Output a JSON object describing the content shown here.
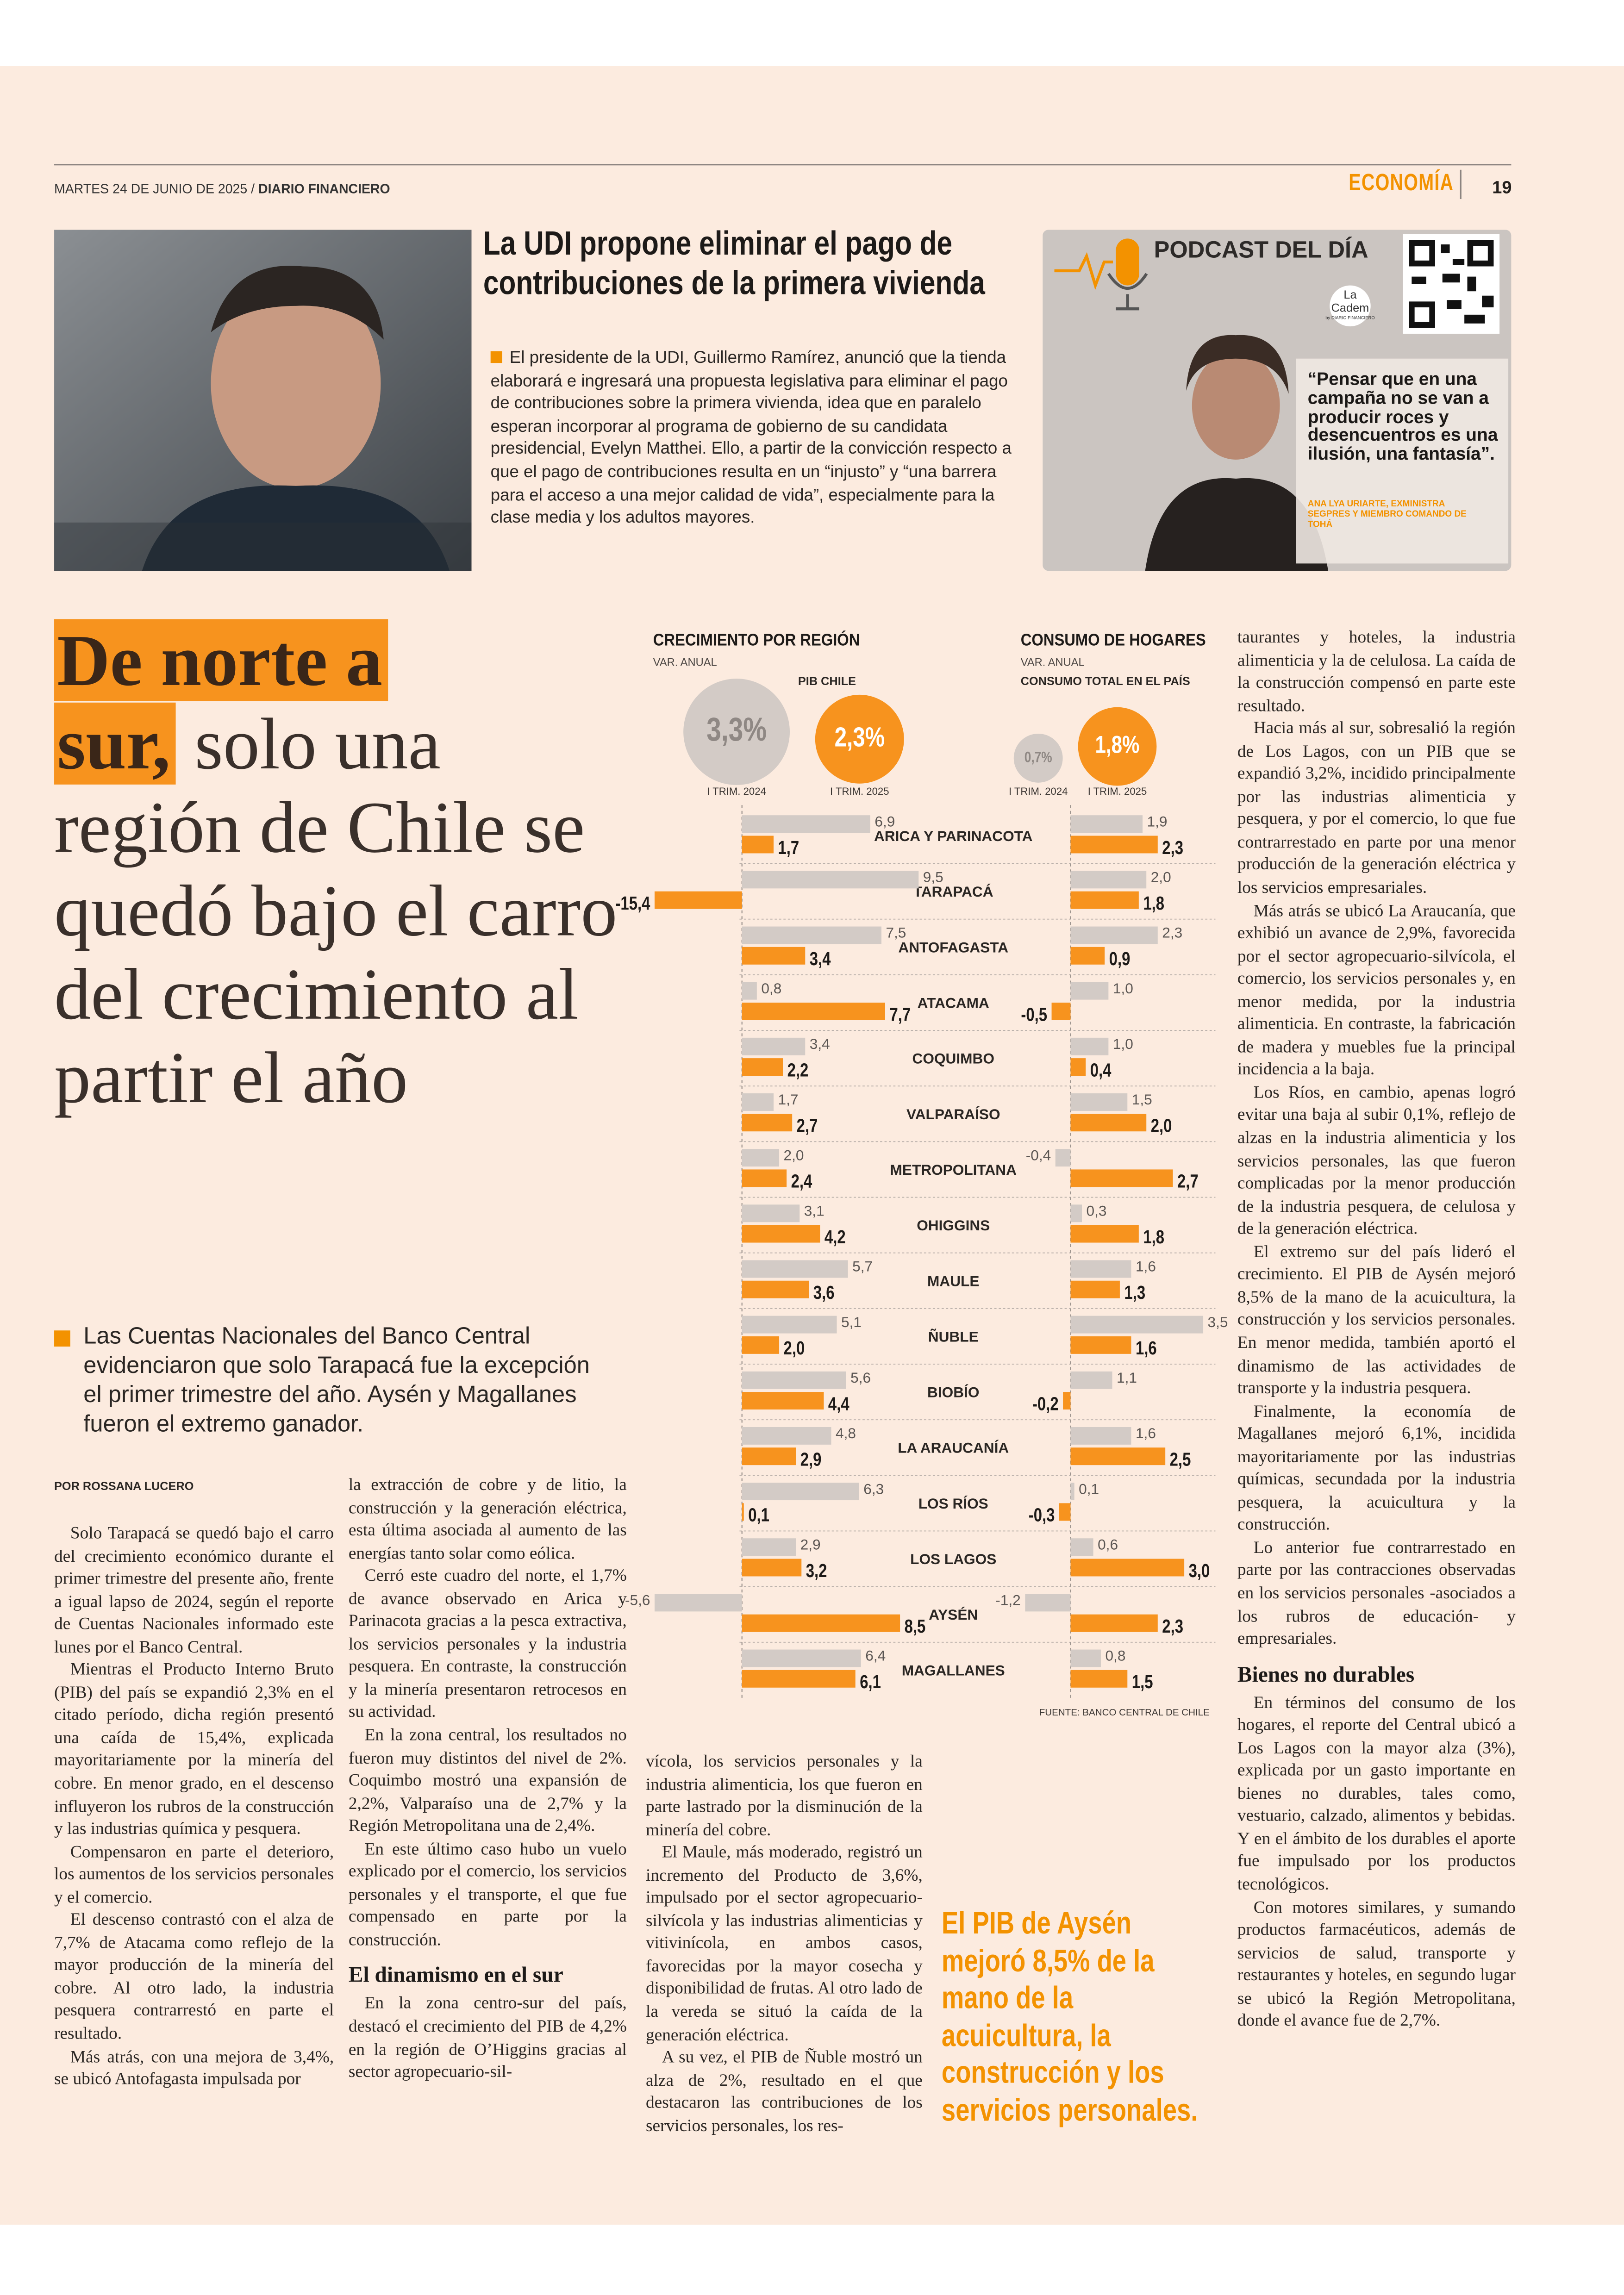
{
  "header": {
    "date": "MARTES 24 DE JUNIO DE 2025 /",
    "paper": "DIARIO FINANCIERO",
    "section": "ECONOMÍA",
    "page": "19"
  },
  "brief": {
    "title": "La UDI propone eliminar el pago de contribuciones de la primera vivienda",
    "body": "El presidente de la UDI, Guillermo Ramírez, anunció que la tienda elaborará e ingresará una propuesta legislativa para eliminar el pago de contribuciones sobre la primera vivienda, idea que en paralelo esperan incorporar al programa de gobierno de su candidata presidencial, Evelyn Matthei. Ello, a partir de la convicción respecto a que el pago de contribuciones resulta en un “injusto” y “una barrera para el acceso a una mejor calidad de vida”, especialmente para la clase media y los adultos mayores."
  },
  "podcast": {
    "title": "PODCAST DEL DÍA",
    "brand": [
      "La",
      "Cadem"
    ],
    "brand_by": "by DIARIO FINANCIERO",
    "quote": "“Pensar que en una campaña no se van a producir roces y desencuentros es una ilusión, una fantasía”.",
    "attribution": "ANA LYA URIARTE, EXMINISTRA SEGPRES Y MIEMBRO COMANDO DE TOHÁ"
  },
  "article": {
    "headline_highlight": [
      "De norte a",
      "sur,"
    ],
    "headline_rest": "solo una región de Chile se quedó bajo el carro del crecimiento al partir el año",
    "lead": "Las Cuentas Nacionales del Banco Central evidenciaron que solo Tarapacá fue la excepción el primer trimestre del año. Aysén y Magallanes fueron el extremo ganador.",
    "byline": "POR ROSSANA LUCERO",
    "columns": [
      [
        {
          "p": "Solo Tarapacá se quedó bajo el carro del crecimiento económico durante el primer trimestre del presente año, frente a igual lapso de 2024, según el reporte de Cuentas Nacionales informado este lunes por el Banco Central."
        },
        {
          "p": "Mientras el Producto Interno Bruto (PIB) del país se expandió 2,3% en el citado período, dicha región presentó una caída de 15,4%, explicada mayoritariamente por la minería del cobre. En menor grado, en el descenso influyeron los rubros de la construcción y las industrias química y pesquera."
        },
        {
          "p": "Compensaron en parte el deterioro, los aumentos de los servicios personales y el comercio."
        },
        {
          "p": "El descenso contrastó con el alza de 7,7% de Atacama como reflejo de la mayor producción de la minería del cobre. Al otro lado, la industria pesquera contrarrestó en parte el resultado."
        },
        {
          "p": "Más atrás, con una mejora de 3,4%, se ubicó Antofagasta impulsada por"
        }
      ],
      [
        {
          "p": "la extracción de cobre y de litio, la construcción y la generación eléctrica, esta última asociada al aumento de las energías tanto solar como eólica."
        },
        {
          "p": "Cerró este cuadro del norte, el 1,7% de avance observado en Arica y Parinacota gracias a la pesca extractiva, los servicios personales y la industria pesquera. En contraste, la construcción y la minería presentaron retrocesos en su actividad."
        },
        {
          "p": "En la zona central, los resultados no fueron muy distintos del nivel de 2%. Coquimbo mostró una expansión de 2,2%, Valparaíso una de 2,7% y la Región Metropolitana una de 2,4%."
        },
        {
          "p": "En este último caso hubo un vuelo explicado por el comercio, los servicios personales y el transporte, el que fue compensado en parte por la construcción."
        },
        {
          "h": "El dinamismo en el sur"
        },
        {
          "p": "En la zona centro-sur del país, destacó el crecimiento del PIB de 4,2% en la región de O’Higgins gracias al sector agropecuario-sil-"
        }
      ],
      [
        {
          "p": "vícola, los servicios personales y la industria alimenticia, los que fueron en parte lastrado por la disminución de la minería del cobre."
        },
        {
          "p": "El Maule, más moderado, registró un incremento del Producto de 3,6%, impulsado por el sector agropecuario-silvícola y las industrias alimenticias y vitivinícola, en ambos casos, favorecidas por la mayor cosecha y disponibilidad de frutas. Al otro lado de la vereda se situó la caída de la generación eléctrica."
        },
        {
          "p": "A su vez, el PIB de Ñuble mostró un alza de 2%, resultado en el que destacaron las contribuciones de los servicios personales, los res-"
        }
      ],
      [
        {
          "p": "taurantes y hoteles, la industria alimenticia y la de celulosa. La caída de la construcción compensó en parte este resultado."
        },
        {
          "p": "Hacia más al sur, sobresalió la región de Los Lagos, con un PIB que se expandió 3,2%, incidido principalmente por las industrias alimenticia y pesquera, y por el comercio, lo que fue contrarrestado en parte por una menor producción de la generación eléctrica y los servicios empresariales."
        },
        {
          "p": "Más atrás se ubicó La Araucanía, que exhibió un avance de 2,9%, favorecida por el sector agropecuario-silvícola, el comercio, los servicios personales y, en menor medida, por la industria alimenticia. En contraste, la fabricación de madera y muebles fue la principal incidencia a la baja."
        },
        {
          "p": "Los Ríos, en cambio, apenas logró evitar una baja al subir 0,1%, reflejo de alzas en la industria alimenticia y los servicios personales, las que fueron complicadas por la menor producción de la industria pesquera, de celulosa y de la generación eléctrica."
        },
        {
          "p": "El extremo sur del país lideró el crecimiento. El PIB de Aysén mejoró 8,5% de la mano de la acuicultura, la construcción y los servicios personales. En menor medida, también aportó el dinamismo de las actividades de transporte y la industria pesquera."
        },
        {
          "p": "Finalmente, la economía de Magallanes mejoró 6,1%, incidida mayoritariamente por las industrias químicas, secundada por la industria pesquera, la acuicultura y la construcción."
        },
        {
          "p": "Lo anterior fue contrarrestado en parte por las contracciones observadas en los servicios personales -asociados a los rubros de educación- y empresariales."
        },
        {
          "h": "Bienes no durables"
        },
        {
          "p": "En términos del consumo de los hogares, el reporte del Central ubicó a Los Lagos con la mayor alza (3%), explicada por un gasto importante en bienes no durables, tales como, vestuario, calzado, alimentos y bebidas. Y en el ámbito de los durables el aporte fue impulsado por los productos tecnológicos."
        },
        {
          "p": "Con motores similares, y sumando productos farmacéuticos, además de servicios de salud, transporte y restaurantes y hoteles, en segundo lugar se ubicó la Región Metropolitana, donde el avance fue de 2,7%."
        }
      ]
    ],
    "pull_quote": "El PIB de Aysén mejoró 8,5% de la mano de la acuicultura, la construcción y los servicios personales."
  },
  "charts": [
    {
      "type": "bar",
      "title": "CRECIMIENTO POR REGIÓN",
      "subtitle": "VAR. ANUAL",
      "categories": [
        "ARICA Y PARINACOTA",
        "TARAPACÁ",
        "ANTOFAGASTA",
        "ATACAMA",
        "COQUIMBO",
        "VALPARAÍSO",
        "METROPOLITANA",
        "OHIGGINS",
        "MAULE",
        "ÑUBLE",
        "BIOBÍO",
        "LA ARAUCANÍA",
        "LOS RÍOS",
        "LOS LAGOS",
        "AYSÉN",
        "MAGALLANES"
      ],
      "xlim": [
        -4.7,
        10.5
      ],
      "totals": {
        "label": "PIB CHILE",
        "values": [
          3.3,
          2.3
        ],
        "value_labels": [
          "3,3%",
          "2,3%"
        ]
      },
      "series": [
        {
          "name": "I TRIM. 2024",
          "color": "#d3cbc6",
          "values": [
            6.9,
            9.5,
            7.5,
            0.8,
            3.4,
            1.7,
            2.0,
            3.1,
            5.7,
            5.1,
            5.6,
            4.8,
            6.3,
            2.9,
            -5.6,
            6.4
          ],
          "value_labels": [
            "6,9",
            "9,5",
            "7,5",
            "0,8",
            "3,4",
            "1,7",
            "2,0",
            "3,1",
            "5,7",
            "5,1",
            "5,6",
            "4,8",
            "6,3",
            "2,9",
            "-5,6",
            "6,4"
          ]
        },
        {
          "name": "I TRIM. 2025",
          "color": "#f7931e",
          "values": [
            1.7,
            -15.4,
            3.4,
            7.7,
            2.2,
            2.7,
            2.4,
            4.2,
            3.6,
            2.0,
            4.4,
            2.9,
            0.1,
            3.2,
            8.5,
            6.1
          ],
          "value_labels": [
            "1,7",
            "-15,4",
            "3,4",
            "7,7",
            "2,2",
            "2,7",
            "2,4",
            "4,2",
            "3,6",
            "2,0",
            "4,4",
            "2,9",
            "0,1",
            "3,2",
            "8,5",
            "6,1"
          ]
        }
      ]
    },
    {
      "type": "bar",
      "title": "CONSUMO DE HOGARES",
      "subtitle": "VAR. ANUAL",
      "xlim": [
        -1.2,
        3.9
      ],
      "totals": {
        "label": "CONSUMO TOTAL EN EL PAÍS",
        "values": [
          0.7,
          1.8
        ],
        "value_labels": [
          "0,7%",
          "1,8%"
        ]
      },
      "series": [
        {
          "name": "I TRIM. 2024",
          "color": "#d3cbc6",
          "values": [
            1.9,
            2.0,
            2.3,
            1.0,
            1.0,
            1.5,
            -0.4,
            0.3,
            1.6,
            3.5,
            1.1,
            1.6,
            0.1,
            0.6,
            -1.2,
            0.8
          ],
          "value_labels": [
            "1,9",
            "2,0",
            "2,3",
            "1,0",
            "1,0",
            "1,5",
            "-0,4",
            "0,3",
            "1,6",
            "3,5",
            "1,1",
            "1,6",
            "0,1",
            "0,6",
            "-1,2",
            "0,8"
          ]
        },
        {
          "name": "I TRIM. 2025",
          "color": "#f7931e",
          "values": [
            2.3,
            1.8,
            0.9,
            -0.5,
            0.4,
            2.0,
            2.7,
            1.8,
            1.3,
            1.6,
            -0.2,
            2.5,
            -0.3,
            3.0,
            2.3,
            1.5
          ],
          "value_labels": [
            "2,3",
            "1,8",
            "0,9",
            "-0,5",
            "0,4",
            "2,0",
            "2,7",
            "1,8",
            "1,3",
            "1,6",
            "-0,2",
            "2,5",
            "-0,3",
            "3,0",
            "2,3",
            "1,5"
          ]
        }
      ],
      "source": "FUENTE: BANCO CENTRAL DE CHILE"
    }
  ]
}
